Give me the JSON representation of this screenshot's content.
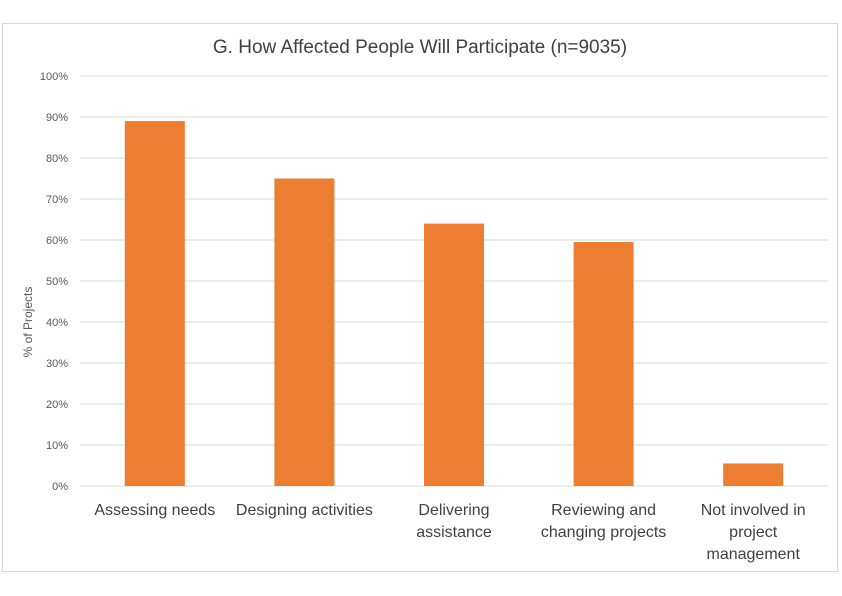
{
  "chart_data": {
    "type": "bar",
    "title": "G. How Affected People Will Participate (n=9035)",
    "xlabel": "",
    "ylabel": "% of Projects",
    "ylim": [
      0,
      100
    ],
    "yticks": [
      "0%",
      "10%",
      "20%",
      "30%",
      "40%",
      "50%",
      "60%",
      "70%",
      "80%",
      "90%",
      "100%"
    ],
    "grid": true,
    "categories": [
      [
        "Assessing needs"
      ],
      [
        "Designing activities"
      ],
      [
        "Delivering",
        "assistance"
      ],
      [
        "Reviewing and",
        "changing projects"
      ],
      [
        "Not involved in",
        "project",
        "management"
      ]
    ],
    "values": [
      89,
      75,
      64,
      59.5,
      5.5
    ],
    "bar_color": "#ed7d31"
  }
}
